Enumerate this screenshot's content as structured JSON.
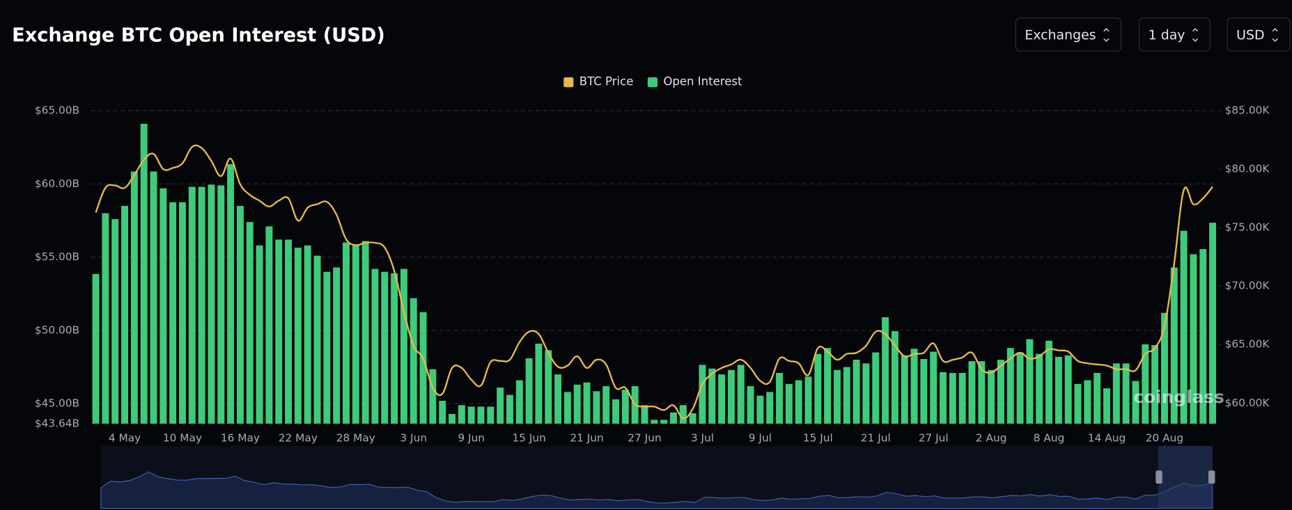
{
  "chart_data": {
    "type": "bar",
    "title": "Exchange BTC Open Interest (USD)",
    "categories": [
      null,
      null,
      null,
      "4 May",
      null,
      null,
      null,
      null,
      null,
      "10 May",
      null,
      null,
      null,
      null,
      null,
      "16 May",
      null,
      null,
      null,
      null,
      null,
      "22 May",
      null,
      null,
      null,
      null,
      null,
      "28 May",
      null,
      null,
      null,
      null,
      null,
      "3 Jun",
      null,
      null,
      null,
      null,
      null,
      "9 Jun",
      null,
      null,
      null,
      null,
      null,
      "15 Jun",
      null,
      null,
      null,
      null,
      null,
      "21 Jun",
      null,
      null,
      null,
      null,
      null,
      "27 Jun",
      null,
      null,
      null,
      null,
      null,
      "3 Jul",
      null,
      null,
      null,
      null,
      null,
      "9 Jul",
      null,
      null,
      null,
      null,
      null,
      "15 Jul",
      null,
      null,
      null,
      null,
      null,
      "21 Jul",
      null,
      null,
      null,
      null,
      null,
      "27 Jul",
      null,
      null,
      null,
      null,
      null,
      "2 Aug",
      null,
      null,
      null,
      null,
      null,
      "8 Aug",
      null,
      null,
      null,
      null,
      null,
      "14 Aug",
      null,
      null,
      null,
      null,
      null,
      "20 Aug",
      null,
      null,
      null,
      null,
      null
    ],
    "series": [
      {
        "name": "BTC Price",
        "type": "line",
        "axis": "y2",
        "color": "#e9b949",
        "values": [
          76.3,
          78.4,
          78.6,
          78.4,
          79.5,
          80.8,
          81.3,
          80.0,
          80.1,
          80.5,
          81.9,
          81.8,
          80.7,
          79.4,
          80.9,
          78.7,
          77.8,
          77.3,
          76.8,
          77.3,
          77.5,
          75.6,
          76.7,
          77.0,
          77.2,
          76.1,
          74.0,
          73.5,
          73.7,
          73.7,
          73.3,
          71.3,
          67.8,
          64.9,
          63.8,
          61.3,
          60.8,
          63.0,
          63.0,
          62.0,
          61.5,
          63.5,
          63.6,
          63.7,
          65.2,
          66.1,
          65.9,
          64.3,
          63.1,
          63.2,
          64.0,
          63.0,
          63.7,
          63.3,
          61.3,
          61.3,
          59.9,
          59.7,
          59.7,
          59.4,
          59.8,
          58.7,
          59.5,
          61.6,
          62.5,
          63.0,
          63.3,
          63.7,
          63.0,
          61.9,
          61.8,
          63.8,
          63.6,
          63.4,
          62.4,
          64.7,
          64.4,
          63.7,
          64.2,
          64.3,
          64.9,
          66.1,
          65.9,
          64.9,
          64.0,
          64.2,
          64.3,
          65.1,
          63.6,
          63.7,
          63.9,
          64.3,
          62.9,
          62.6,
          63.2,
          63.8,
          64.3,
          63.8,
          64.0,
          64.6,
          64.5,
          64.4,
          63.6,
          63.4,
          63.3,
          63.2,
          62.9,
          62.9,
          62.8,
          64.2,
          64.7,
          66.6,
          71.9,
          78.2,
          77.0,
          77.5,
          78.5
        ]
      },
      {
        "name": "Open Interest",
        "type": "bar",
        "color": "#3ecb7a",
        "values": [
          53.85,
          58.0,
          57.6,
          58.5,
          60.85,
          64.1,
          60.85,
          59.7,
          58.75,
          58.75,
          59.8,
          59.8,
          59.95,
          59.9,
          61.35,
          58.5,
          57.4,
          55.8,
          57.1,
          56.2,
          56.2,
          55.65,
          55.8,
          55.1,
          54.0,
          54.3,
          56.0,
          55.8,
          56.1,
          54.2,
          54.0,
          53.9,
          54.2,
          52.2,
          51.25,
          47.35,
          45.2,
          44.3,
          44.9,
          44.8,
          44.8,
          44.8,
          46.1,
          45.6,
          46.6,
          48.1,
          49.1,
          48.65,
          47.0,
          45.8,
          46.3,
          46.45,
          45.85,
          46.2,
          45.3,
          45.95,
          46.2,
          44.9,
          43.9,
          43.9,
          44.4,
          44.9,
          44.35,
          47.65,
          47.4,
          47.0,
          47.3,
          47.65,
          46.2,
          45.55,
          45.8,
          47.1,
          46.35,
          46.6,
          46.85,
          48.4,
          48.8,
          47.3,
          47.5,
          48.0,
          47.75,
          48.5,
          50.9,
          49.95,
          48.3,
          48.75,
          48.05,
          48.55,
          47.15,
          47.1,
          47.1,
          47.9,
          47.9,
          47.3,
          48.0,
          48.8,
          48.5,
          49.4,
          48.4,
          49.3,
          48.2,
          48.3,
          46.35,
          46.6,
          47.1,
          46.05,
          47.75,
          47.75,
          46.55,
          49.05,
          49.0,
          51.2,
          54.3,
          56.8,
          55.2,
          55.55,
          57.35
        ]
      }
    ],
    "ylim": [
      43.64,
      65
    ],
    "yticks": [
      {
        "value": 43.64,
        "label": "$43.64B"
      },
      {
        "value": 45,
        "label": "$45.00B"
      },
      {
        "value": 50,
        "label": "$50.00B"
      },
      {
        "value": 55,
        "label": "$55.00B"
      },
      {
        "value": 60,
        "label": "$60.00B"
      },
      {
        "value": 65,
        "label": "$65.00B"
      }
    ],
    "y2lim": [
      58.24,
      85
    ],
    "y2ticks": [
      {
        "value": 60,
        "label": "$60.00K"
      },
      {
        "value": 65,
        "label": "$65.00K"
      },
      {
        "value": 70,
        "label": "$70.00K"
      },
      {
        "value": 75,
        "label": "$75.00K"
      },
      {
        "value": 80,
        "label": "$80.00K"
      },
      {
        "value": 85,
        "label": "$85.00K"
      }
    ],
    "grid": true,
    "legend": "top"
  },
  "controls": [
    "Exchanges",
    "1 day",
    "USD"
  ],
  "watermark": "coinglass"
}
